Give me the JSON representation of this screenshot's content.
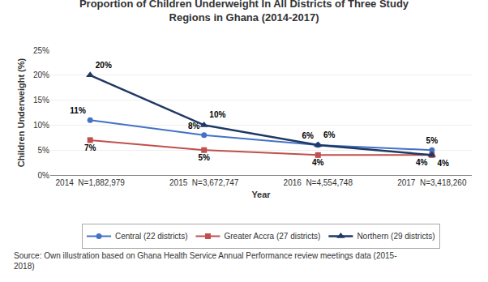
{
  "chart_data": {
    "type": "line",
    "title": "Proportion of Children Underweight In All Districts of Three Study\nRegions in Ghana (2014-2017)",
    "x_label": "Year",
    "y_label": "Children Underweight (%)",
    "categories": [
      "2014  N=1,882,979",
      "2015  N=3,672,747",
      "2016  N=4,554,748",
      "2017  N=3,418,260"
    ],
    "series": [
      {
        "name": "Central (22 districts)",
        "color": "#4472C4",
        "marker": "circle",
        "line_style": "solid",
        "values": [
          11,
          8,
          6,
          5
        ],
        "value_labels": [
          "11%",
          "8%",
          "6%",
          "5%"
        ]
      },
      {
        "name": "Greater Accra (27 districts)",
        "color": "#C0504D",
        "marker": "square",
        "line_style": "solid",
        "values": [
          7,
          5,
          4,
          4
        ],
        "value_labels": [
          "7%",
          "5%",
          "4%",
          "4%"
        ]
      },
      {
        "name": "Northern (29 districts)",
        "color": "#1F3864",
        "marker": "triangle-up",
        "line_style": "solid",
        "values": [
          20,
          10,
          6,
          4
        ],
        "value_labels": [
          "20%",
          "10%",
          "6%",
          "4%"
        ]
      }
    ],
    "ylim": [
      0,
      25
    ],
    "yticks": [
      {
        "value": 0,
        "label": "0%"
      },
      {
        "value": 5,
        "label": "5%"
      },
      {
        "value": 10,
        "label": "10%"
      },
      {
        "value": 15,
        "label": "15%"
      },
      {
        "value": 20,
        "label": "20%"
      },
      {
        "value": 25,
        "label": "25%"
      }
    ],
    "grid": true,
    "legend": "bottom",
    "data_labels": true,
    "annotations": [
      "Source: Own illustration based on Ghana Health Service Annual Performance review meetings data (2015-\n2018)"
    ]
  }
}
